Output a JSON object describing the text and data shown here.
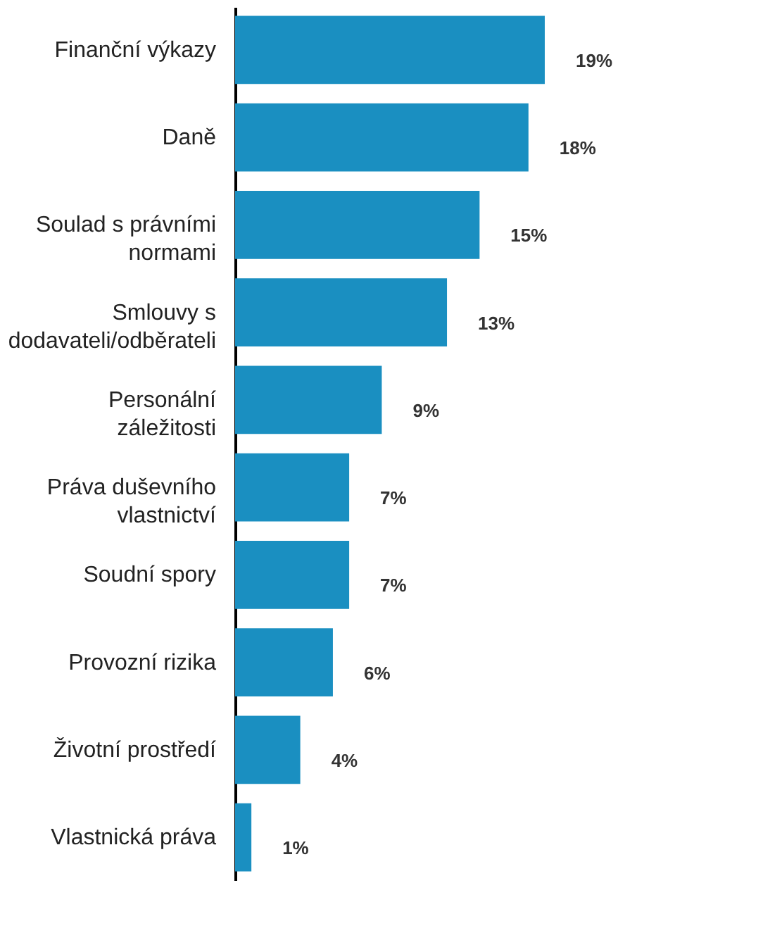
{
  "chart_data": {
    "type": "bar",
    "orientation": "horizontal",
    "categories": [
      "Finanční výkazy",
      "Daně",
      "Soulad s právními normami",
      "Smlouvy s dodavateli/odběrateli",
      "Personální záležitosti",
      "Práva duševního vlastnictví",
      "Soudní spory",
      "Provozní rizika",
      "Životní prostředí",
      "Vlastnická práva"
    ],
    "values": [
      19,
      18,
      15,
      13,
      9,
      7,
      7,
      6,
      4,
      1
    ],
    "value_labels": [
      "19%",
      "18%",
      "15%",
      "13%",
      "9%",
      "7%",
      "7%",
      "6%",
      "4%",
      "1%"
    ],
    "color": "#1a8fc1"
  }
}
